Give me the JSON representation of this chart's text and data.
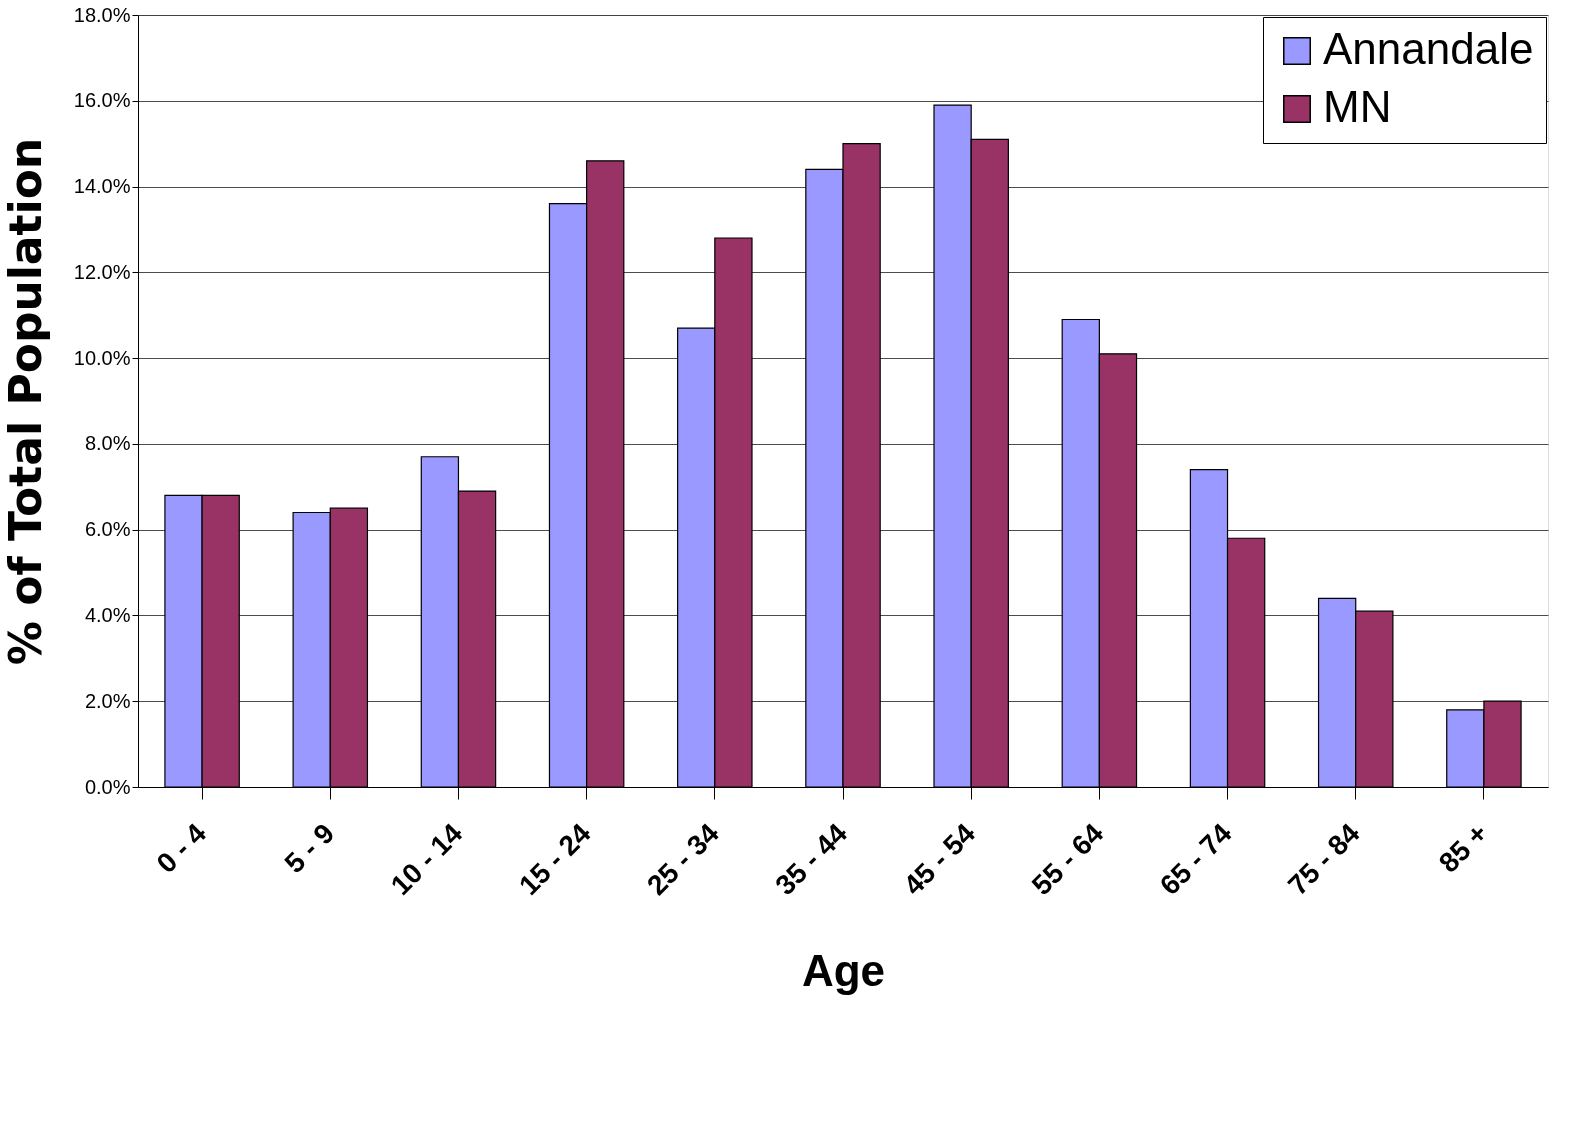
{
  "chart_data": {
    "type": "bar",
    "xlabel": "Age",
    "ylabel": "% of Total Population",
    "categories": [
      "0 - 4",
      "5 - 9",
      "10 - 14",
      "15 - 24",
      "25 - 34",
      "35 - 44",
      "45 - 54",
      "55 - 64",
      "65 - 74",
      "75 - 84",
      "85 +"
    ],
    "series": [
      {
        "name": "Annandale",
        "color": "#9999ff",
        "values": [
          6.8,
          6.4,
          7.7,
          13.6,
          10.7,
          14.4,
          15.9,
          10.9,
          7.4,
          4.4,
          1.8
        ]
      },
      {
        "name": "MN",
        "color": "#993366",
        "values": [
          6.8,
          6.5,
          6.9,
          14.6,
          12.8,
          15.0,
          15.1,
          10.1,
          5.8,
          4.1,
          2.0
        ]
      }
    ],
    "ylim": [
      0,
      18
    ],
    "yticks": [
      {
        "value": 0,
        "label": "0.0%"
      },
      {
        "value": 2,
        "label": "2.0%"
      },
      {
        "value": 4,
        "label": "4.0%"
      },
      {
        "value": 6,
        "label": "6.0%"
      },
      {
        "value": 8,
        "label": "8.0%"
      },
      {
        "value": 10,
        "label": "10.0%"
      },
      {
        "value": 12,
        "label": "12.0%"
      },
      {
        "value": 14,
        "label": "14.0%"
      },
      {
        "value": 16,
        "label": "16.0%"
      },
      {
        "value": 18,
        "label": "18.0%"
      }
    ],
    "grid": "y",
    "legend": "top right"
  }
}
